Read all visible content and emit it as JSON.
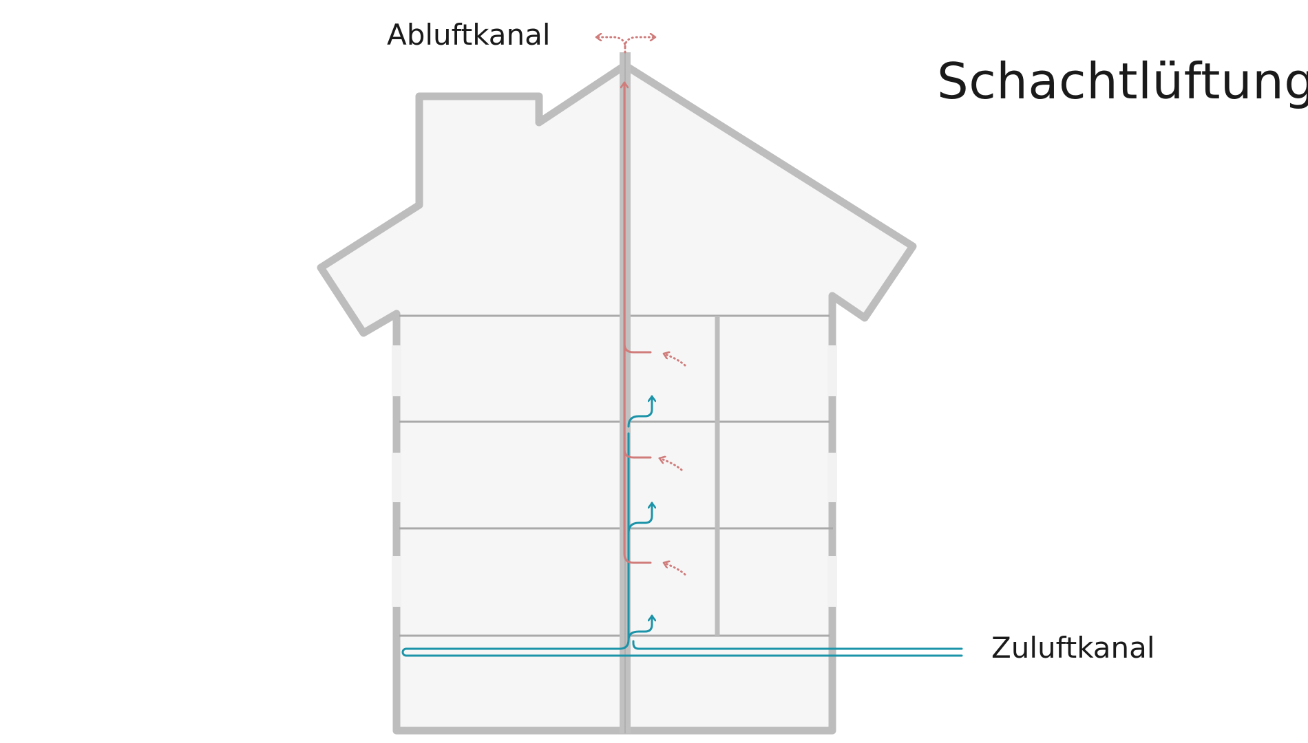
{
  "title": "Schachtlüftung",
  "labels": {
    "exhaust_duct": "Abluftkanal",
    "supply_duct": "Zuluftkanal"
  },
  "colors": {
    "wall": "#bdbdbd",
    "house_fill": "#f6f6f6",
    "floor_line": "#a9a9a9",
    "exhaust_air": "#cf7c7b",
    "supply_air": "#1b93a8",
    "text": "#1a1a1a"
  },
  "icons": {
    "exhaust_arrow": "red-arrow-icon",
    "supply_arrow": "teal-arrow-icon",
    "intake_arrow": "dotted-arrow-icon"
  }
}
